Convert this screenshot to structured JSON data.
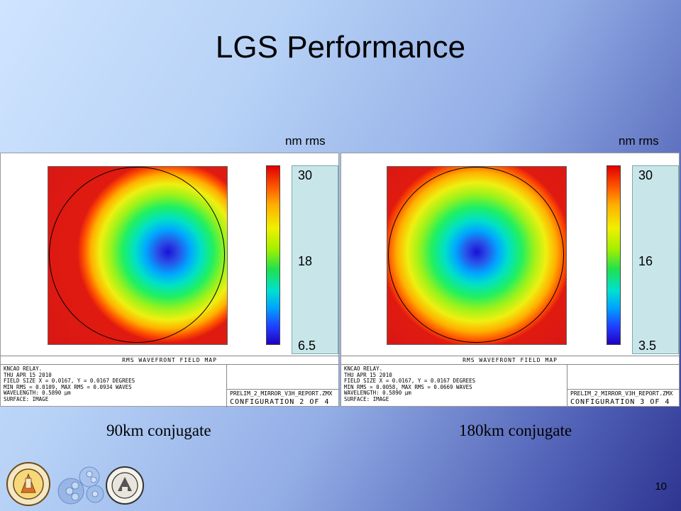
{
  "slide": {
    "title": "LGS Performance",
    "page_number": "10"
  },
  "left_panel": {
    "unit": "nm rms",
    "scale": {
      "max": "30",
      "mid": "18",
      "min": "6.5"
    },
    "footer_header": "RMS WAVEFRONT FIELD MAP",
    "info_lines": "KNCAO RELAY.\nTHU APR 15 2010\nFIELD SIZE X = 0.0167, Y = 0.0167 DEGREES\nMIN RMS = 0.0109, MAX RMS = 0.0934 WAVES\nWAVELENGTH: 0.5890 µm\nSURFACE: IMAGE",
    "file": "PRELIM_2_MIRROR_V3H_REPORT.ZMX",
    "configuration": "CONFIGURATION 2 OF 4",
    "caption": "90km conjugate"
  },
  "right_panel": {
    "unit": "nm rms",
    "scale": {
      "max": "30",
      "mid": "16",
      "min": "3.5"
    },
    "footer_header": "RMS WAVEFRONT FIELD MAP",
    "info_lines": "KNCAO RELAY.\nTHU APR 15 2010\nFIELD SIZE X = 0.0167, Y = 0.0167 DEGREES\nMIN RMS = 0.0058, MAX RMS = 0.0669 WAVES\nWAVELENGTH: 0.5890 µm\nSURFACE: IMAGE",
    "file": "PRELIM_2_MIRROR_V3H_REPORT.ZMX",
    "configuration": "CONFIGURATION 3 OF 4",
    "caption": "180km conjugate"
  },
  "logos": [
    "caltech-seal-icon",
    "segmented-mirror-icon",
    "uc-seal-icon"
  ]
}
